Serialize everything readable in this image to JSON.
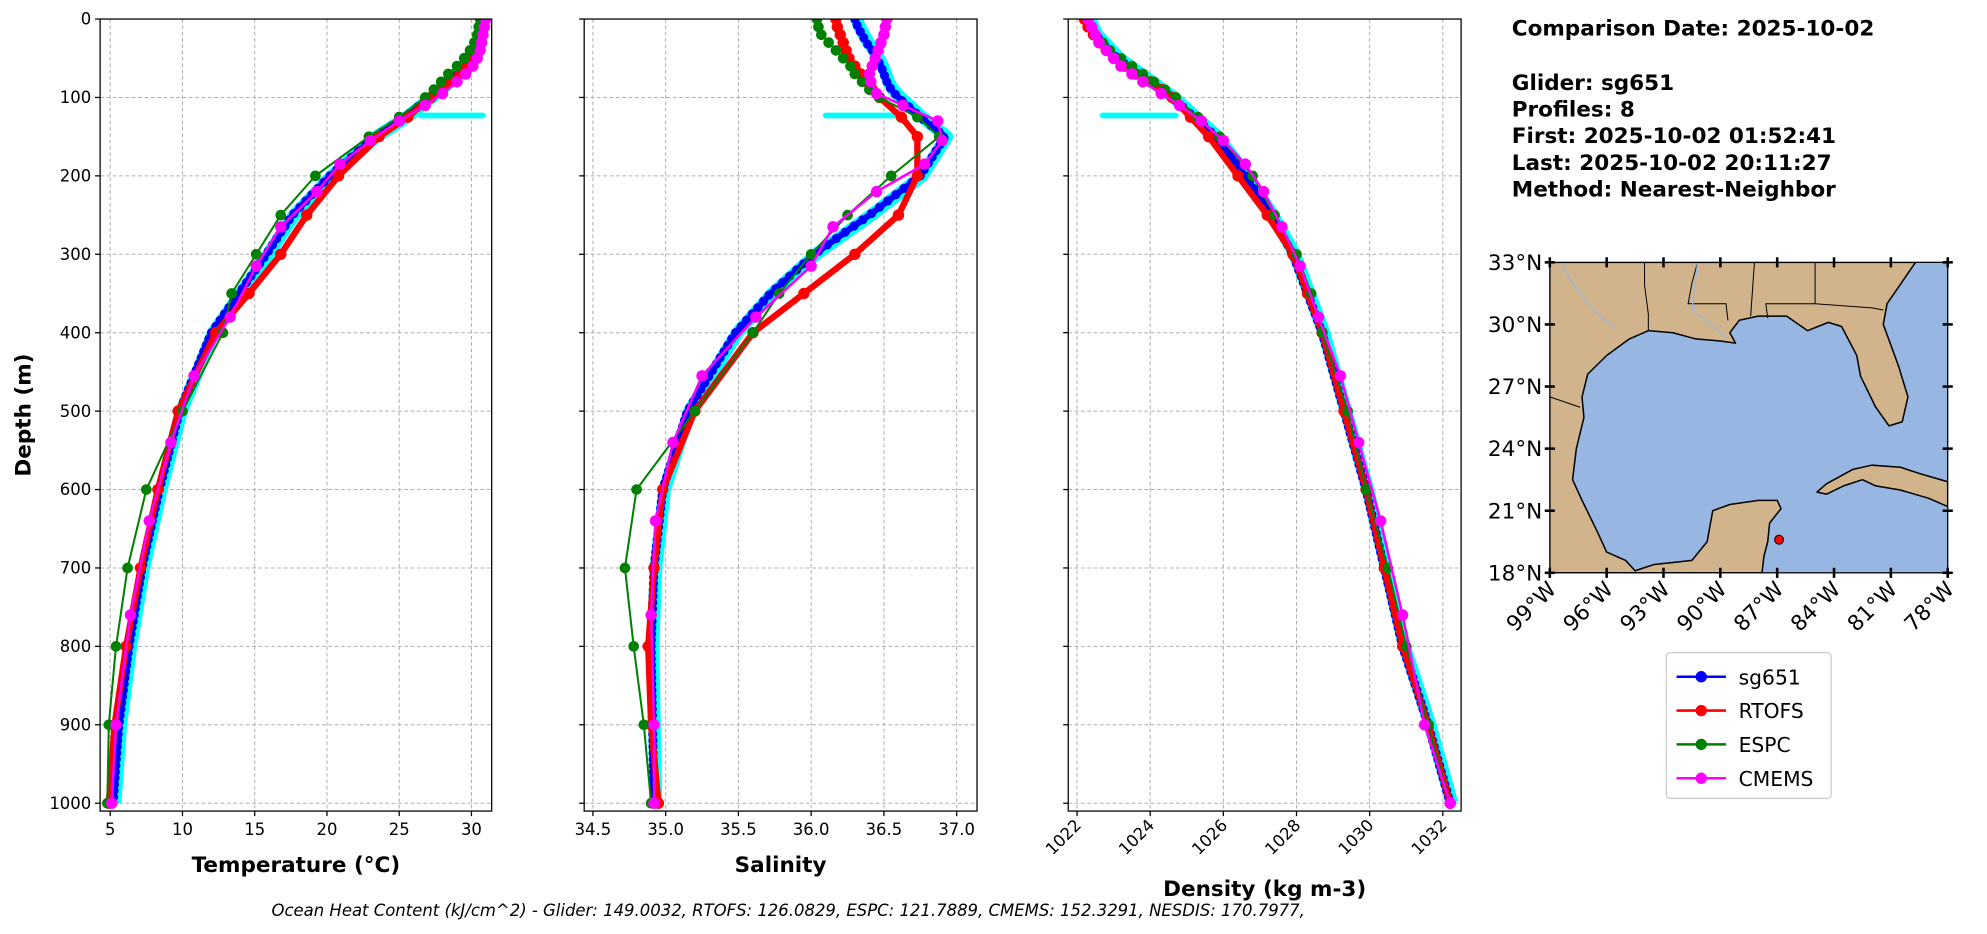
{
  "info": {
    "lines": [
      "Comparison Date: 2025-10-02",
      "",
      "Glider: sg651",
      "Profiles: 8",
      "First: 2025-10-02 01:52:41",
      "Last: 2025-10-02 20:11:27",
      "Method: Nearest-Neighbor"
    ]
  },
  "footer": "Ocean Heat Content (kJ/cm^2) - Glider: 149.0032,  RTOFS: 126.0829,  ESPC: 121.7889,  CMEMS: 152.3291,  NESDIS: 170.7977,",
  "colors": {
    "sg651": "#0000ff",
    "RTOFS": "#ff0000",
    "ESPC": "#008000",
    "CMEMS": "#ff00ff",
    "glider_profiles": "#00ffff",
    "land": "#d2b48c",
    "ocean": "#97b6e1"
  },
  "chart_data": [
    {
      "type": "line",
      "xlabel": "Temperature (°C)",
      "ylabel": "Depth (m)",
      "xlim": [
        4.3,
        31.4
      ],
      "ylim": [
        1010,
        0
      ],
      "xticks": [
        5,
        10,
        15,
        20,
        25,
        30
      ],
      "yticks": [
        0,
        100,
        200,
        300,
        400,
        500,
        600,
        700,
        800,
        900,
        1000
      ],
      "grid": true,
      "depths": {
        "main": [
          0,
          10,
          20,
          30,
          40,
          50,
          60,
          70,
          80,
          90,
          100,
          125,
          150,
          200,
          250,
          300,
          350,
          400,
          500,
          600,
          700,
          800,
          900,
          1000
        ],
        "cmems": [
          0,
          10,
          20,
          30,
          40,
          50,
          60,
          70,
          80,
          95,
          110,
          130,
          155,
          185,
          220,
          265,
          315,
          380,
          455,
          540,
          640,
          760,
          900,
          1000
        ]
      },
      "series": [
        {
          "name": "sg651",
          "depth_key": "main",
          "values": [
            30.6,
            30.6,
            30.5,
            30.4,
            30.2,
            29.9,
            29.5,
            29.0,
            28.4,
            27.8,
            27.1,
            25.4,
            23.3,
            20.2,
            17.6,
            15.8,
            13.9,
            12.0,
            9.8,
            8.4,
            7.2,
            6.3,
            5.6,
            5.2
          ]
        },
        {
          "name": "RTOFS",
          "depth_key": "main",
          "values": [
            30.8,
            30.8,
            30.7,
            30.6,
            30.4,
            30.1,
            29.7,
            29.2,
            28.6,
            27.9,
            27.2,
            25.6,
            23.6,
            20.8,
            18.6,
            16.8,
            14.6,
            12.3,
            9.7,
            8.3,
            7.1,
            6.1,
            5.3,
            4.9
          ]
        },
        {
          "name": "ESPC",
          "depth_key": "main",
          "values": [
            30.6,
            30.5,
            30.4,
            30.2,
            29.9,
            29.5,
            29.0,
            28.4,
            27.9,
            27.4,
            26.8,
            25.0,
            22.9,
            19.2,
            16.8,
            15.1,
            13.4,
            12.8,
            10.0,
            7.5,
            6.2,
            5.4,
            4.9,
            4.8
          ]
        },
        {
          "name": "CMEMS",
          "depth_key": "cmems",
          "values": [
            31.0,
            30.9,
            30.8,
            30.7,
            30.6,
            30.4,
            30.1,
            29.6,
            29.0,
            28.0,
            26.8,
            25.0,
            23.0,
            20.9,
            19.3,
            16.8,
            15.1,
            13.3,
            10.8,
            9.2,
            7.7,
            6.4,
            5.4,
            5.1
          ]
        }
      ],
      "highlight_segment": {
        "depth": 123,
        "x": [
          26.5,
          30.8
        ]
      }
    },
    {
      "type": "line",
      "xlabel": "Salinity",
      "xlim": [
        34.44,
        37.14
      ],
      "ylim": [
        1010,
        0
      ],
      "xticks": [
        "34.5",
        "35.0",
        "35.5",
        "36.0",
        "36.5",
        "37.0"
      ],
      "yticks": [
        0,
        100,
        200,
        300,
        400,
        500,
        600,
        700,
        800,
        900,
        1000
      ],
      "grid": true,
      "series": [
        {
          "name": "sg651",
          "depth_key": "main",
          "values": [
            36.3,
            36.32,
            36.35,
            36.38,
            36.42,
            36.45,
            36.48,
            36.5,
            36.52,
            36.55,
            36.6,
            36.75,
            36.92,
            36.75,
            36.4,
            36.02,
            35.72,
            35.48,
            35.15,
            34.98,
            34.92,
            34.9,
            34.91,
            34.92
          ]
        },
        {
          "name": "RTOFS",
          "depth_key": "main",
          "values": [
            36.17,
            36.18,
            36.2,
            36.22,
            36.24,
            36.26,
            36.3,
            36.34,
            36.38,
            36.42,
            36.47,
            36.62,
            36.73,
            36.73,
            36.6,
            36.3,
            35.95,
            35.6,
            35.2,
            34.98,
            34.92,
            34.88,
            34.9,
            34.95
          ]
        },
        {
          "name": "ESPC",
          "depth_key": "main",
          "values": [
            36.04,
            36.05,
            36.07,
            36.12,
            36.17,
            36.22,
            36.27,
            36.3,
            36.35,
            36.4,
            36.47,
            36.73,
            36.88,
            36.55,
            36.25,
            36.0,
            35.78,
            35.6,
            35.2,
            34.8,
            34.72,
            34.78,
            34.85,
            34.9
          ]
        },
        {
          "name": "CMEMS",
          "depth_key": "cmems",
          "values": [
            36.52,
            36.51,
            36.5,
            36.48,
            36.46,
            36.44,
            36.42,
            36.4,
            36.41,
            36.45,
            36.63,
            36.87,
            36.9,
            36.78,
            36.45,
            36.15,
            36.0,
            35.62,
            35.25,
            35.05,
            34.93,
            34.9,
            34.92,
            34.92
          ]
        }
      ],
      "highlight_segment": {
        "depth": 123,
        "x": [
          36.1,
          36.6
        ]
      }
    },
    {
      "type": "line",
      "xlabel": "Density (kg m-3)",
      "xlim": [
        1021.76,
        1032.5
      ],
      "ylim": [
        1010,
        0
      ],
      "xticks": [
        1022,
        1024,
        1026,
        1028,
        1030,
        1032
      ],
      "yticks": [
        0,
        100,
        200,
        300,
        400,
        500,
        600,
        700,
        800,
        900,
        1000
      ],
      "grid": true,
      "series": [
        {
          "name": "sg651",
          "depth_key": "main",
          "values": [
            1022.3,
            1022.4,
            1022.5,
            1022.7,
            1022.9,
            1023.1,
            1023.4,
            1023.7,
            1024.0,
            1024.3,
            1024.6,
            1025.2,
            1025.8,
            1026.6,
            1027.3,
            1027.9,
            1028.3,
            1028.7,
            1029.3,
            1029.9,
            1030.4,
            1030.9,
            1031.6,
            1032.2
          ]
        },
        {
          "name": "RTOFS",
          "depth_key": "main",
          "values": [
            1022.2,
            1022.3,
            1022.45,
            1022.6,
            1022.8,
            1023.0,
            1023.3,
            1023.6,
            1024.0,
            1024.3,
            1024.6,
            1025.1,
            1025.6,
            1026.4,
            1027.2,
            1027.9,
            1028.3,
            1028.7,
            1029.3,
            1029.9,
            1030.4,
            1030.9,
            1031.6,
            1032.2
          ]
        },
        {
          "name": "ESPC",
          "depth_key": "main",
          "values": [
            1022.3,
            1022.4,
            1022.5,
            1022.7,
            1022.9,
            1023.2,
            1023.5,
            1023.8,
            1024.1,
            1024.4,
            1024.7,
            1025.3,
            1025.9,
            1026.8,
            1027.4,
            1028.0,
            1028.4,
            1028.7,
            1029.4,
            1029.9,
            1030.5,
            1031.0,
            1031.6,
            1032.2
          ]
        },
        {
          "name": "CMEMS",
          "depth_key": "cmems",
          "values": [
            1022.3,
            1022.4,
            1022.5,
            1022.6,
            1022.8,
            1023.0,
            1023.2,
            1023.5,
            1023.8,
            1024.3,
            1024.8,
            1025.4,
            1026.0,
            1026.6,
            1027.1,
            1027.6,
            1028.1,
            1028.6,
            1029.2,
            1029.7,
            1030.3,
            1030.9,
            1031.5,
            1032.2
          ]
        }
      ],
      "highlight_segment": {
        "depth": 123,
        "x": [
          1022.7,
          1024.7
        ]
      }
    }
  ],
  "map": {
    "lon_range": [
      -99,
      -78
    ],
    "lat_range": [
      18,
      33
    ],
    "lon_ticks": [
      "99°W",
      "96°W",
      "93°W",
      "90°W",
      "87°W",
      "84°W",
      "81°W",
      "78°W"
    ],
    "lat_ticks": [
      "33°N",
      "30°N",
      "27°N",
      "24°N",
      "21°N",
      "18°N"
    ],
    "glider_position": {
      "lon": -86.9,
      "lat": 19.6
    }
  },
  "legend": {
    "placement": "below-map",
    "entries": [
      "sg651",
      "RTOFS",
      "ESPC",
      "CMEMS"
    ]
  }
}
